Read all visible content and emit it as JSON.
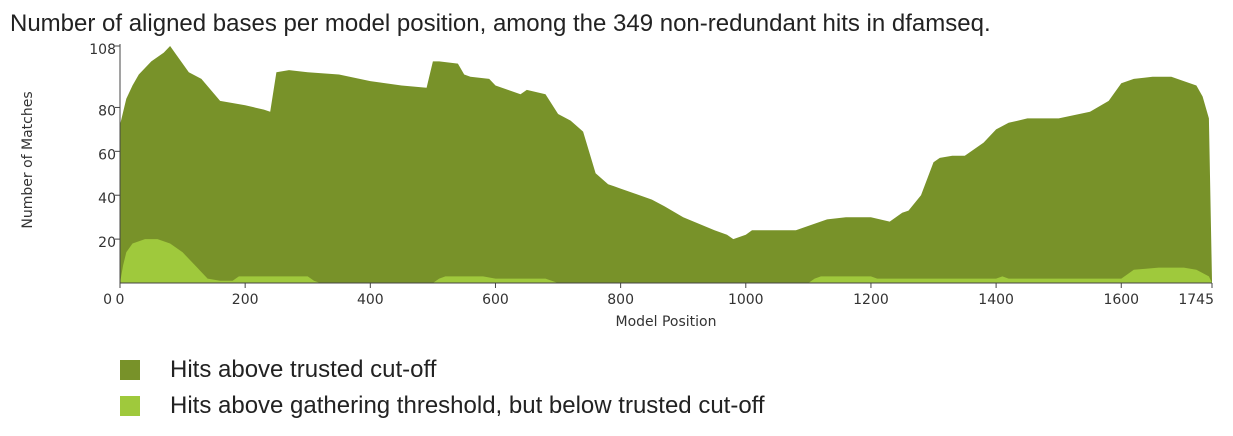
{
  "title": "Number of aligned bases per model position, among the 349 non-redundant hits in dfamseq.",
  "chart_data": {
    "type": "area",
    "xlabel": "Model Position",
    "ylabel": "Number of Matches",
    "xlim": [
      0,
      1745
    ],
    "ylim": [
      0,
      108
    ],
    "xticks": [
      0,
      200,
      400,
      600,
      800,
      1000,
      1200,
      1400,
      1600,
      1745
    ],
    "yticks": [
      20,
      40,
      60,
      80,
      108
    ],
    "grid": false,
    "legend_position": "bottom-left",
    "series": [
      {
        "name": "Hits above trusted cut-off",
        "color": "#789229",
        "x": [
          0,
          10,
          20,
          30,
          50,
          70,
          80,
          90,
          110,
          130,
          160,
          200,
          230,
          240,
          250,
          270,
          300,
          350,
          400,
          450,
          490,
          500,
          510,
          540,
          550,
          560,
          590,
          600,
          620,
          640,
          650,
          680,
          700,
          720,
          740,
          760,
          780,
          790,
          800,
          850,
          870,
          900,
          950,
          970,
          980,
          1000,
          1010,
          1050,
          1080,
          1100,
          1130,
          1160,
          1200,
          1230,
          1250,
          1260,
          1280,
          1300,
          1310,
          1330,
          1350,
          1380,
          1400,
          1420,
          1450,
          1500,
          1550,
          1580,
          1600,
          1620,
          1650,
          1680,
          1700,
          1720,
          1730,
          1740,
          1745
        ],
        "y": [
          72,
          84,
          90,
          95,
          101,
          105,
          108,
          104,
          96,
          93,
          83,
          81,
          79,
          78,
          96,
          97,
          96,
          95,
          92,
          90,
          89,
          101,
          101,
          100,
          95,
          94,
          93,
          90,
          88,
          86,
          88,
          86,
          77,
          74,
          69,
          50,
          45,
          44,
          43,
          38,
          35,
          30,
          24,
          22,
          20,
          22,
          24,
          24,
          24,
          26,
          29,
          30,
          30,
          28,
          32,
          33,
          40,
          55,
          57,
          58,
          58,
          64,
          70,
          73,
          75,
          75,
          78,
          83,
          91,
          93,
          94,
          94,
          92,
          90,
          85,
          75,
          1
        ]
      },
      {
        "name": "Hits above gathering threshold, but below trusted cut-off",
        "color": "#9fc93c",
        "x": [
          0,
          5,
          10,
          20,
          40,
          60,
          80,
          100,
          120,
          140,
          160,
          180,
          190,
          200,
          300,
          310,
          320,
          500,
          510,
          520,
          580,
          600,
          680,
          700,
          1000,
          1100,
          1110,
          1120,
          1200,
          1210,
          1400,
          1410,
          1420,
          1600,
          1610,
          1620,
          1660,
          1700,
          1720,
          1740,
          1745
        ],
        "y": [
          0,
          8,
          14,
          18,
          20,
          20,
          18,
          14,
          8,
          2,
          1,
          1,
          3,
          3,
          3,
          1,
          0,
          0,
          2,
          3,
          3,
          2,
          2,
          0,
          0,
          0,
          2,
          3,
          3,
          2,
          2,
          3,
          2,
          2,
          4,
          6,
          7,
          7,
          6,
          3,
          0
        ]
      }
    ]
  },
  "legend": [
    {
      "label": "Hits above trusted cut-off",
      "color": "#789229"
    },
    {
      "label": "Hits above gathering threshold, but below trusted cut-off",
      "color": "#9fc93c"
    }
  ]
}
